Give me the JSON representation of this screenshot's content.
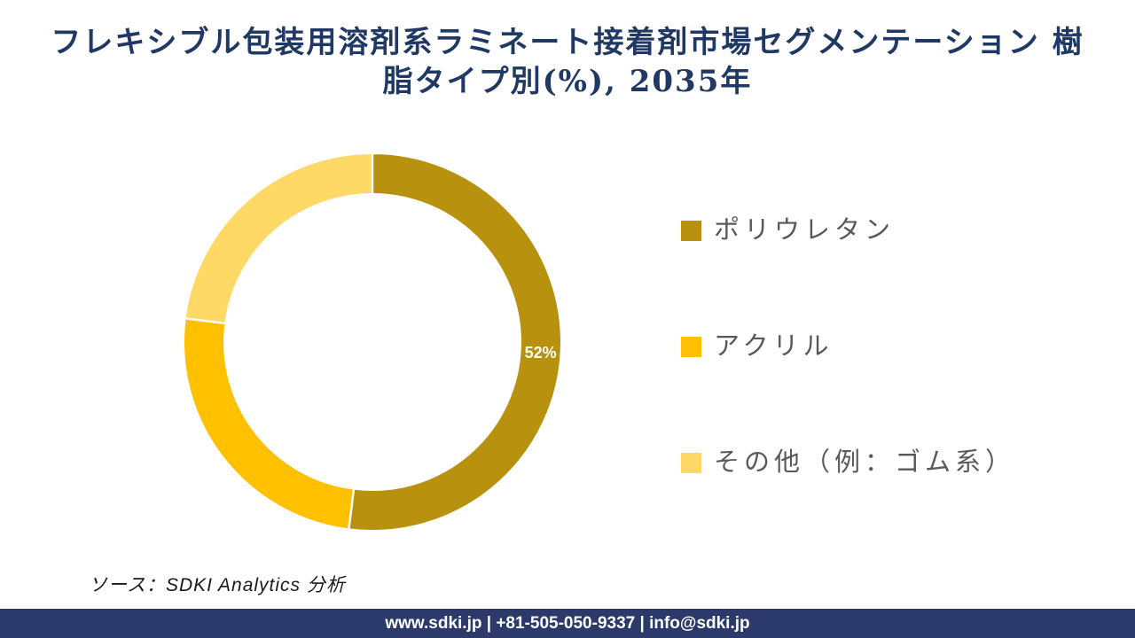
{
  "title": {
    "line1": "フレキシブル包装用溶剤系ラミネート接着剤市場セグメンテーション 樹",
    "line2": "脂タイプ別(%), 2035年"
  },
  "source_note": "ソース：SDKI Analytics  分析",
  "footer": {
    "text": "www.sdki.jp | +81-505-050-9337 | info@sdki.jp",
    "background": "#2b3a6b"
  },
  "theme": {
    "title_color": "#1f3864",
    "legend_text_color": "#595959",
    "background": "#ffffff",
    "data_label_color": "#ffffff"
  },
  "chart_data": {
    "type": "pie",
    "subtype": "donut",
    "title": "フレキシブル包装用溶剤系ラミネート接着剤市場セグメンテーション 樹脂タイプ別(%), 2035年",
    "categories": [
      "ポリウレタン",
      "アクリル",
      "その他（例：ゴム系）"
    ],
    "values": [
      52,
      25,
      23
    ],
    "colors": [
      "#B8920E",
      "#FFC000",
      "#FFD966"
    ],
    "data_labels": [
      "52%",
      "",
      ""
    ],
    "unit": "%",
    "year": "2035",
    "legend_position": "right",
    "start_angle_deg": 0,
    "donut_hole_ratio": 0.79,
    "separator_color": "#ffffff"
  }
}
